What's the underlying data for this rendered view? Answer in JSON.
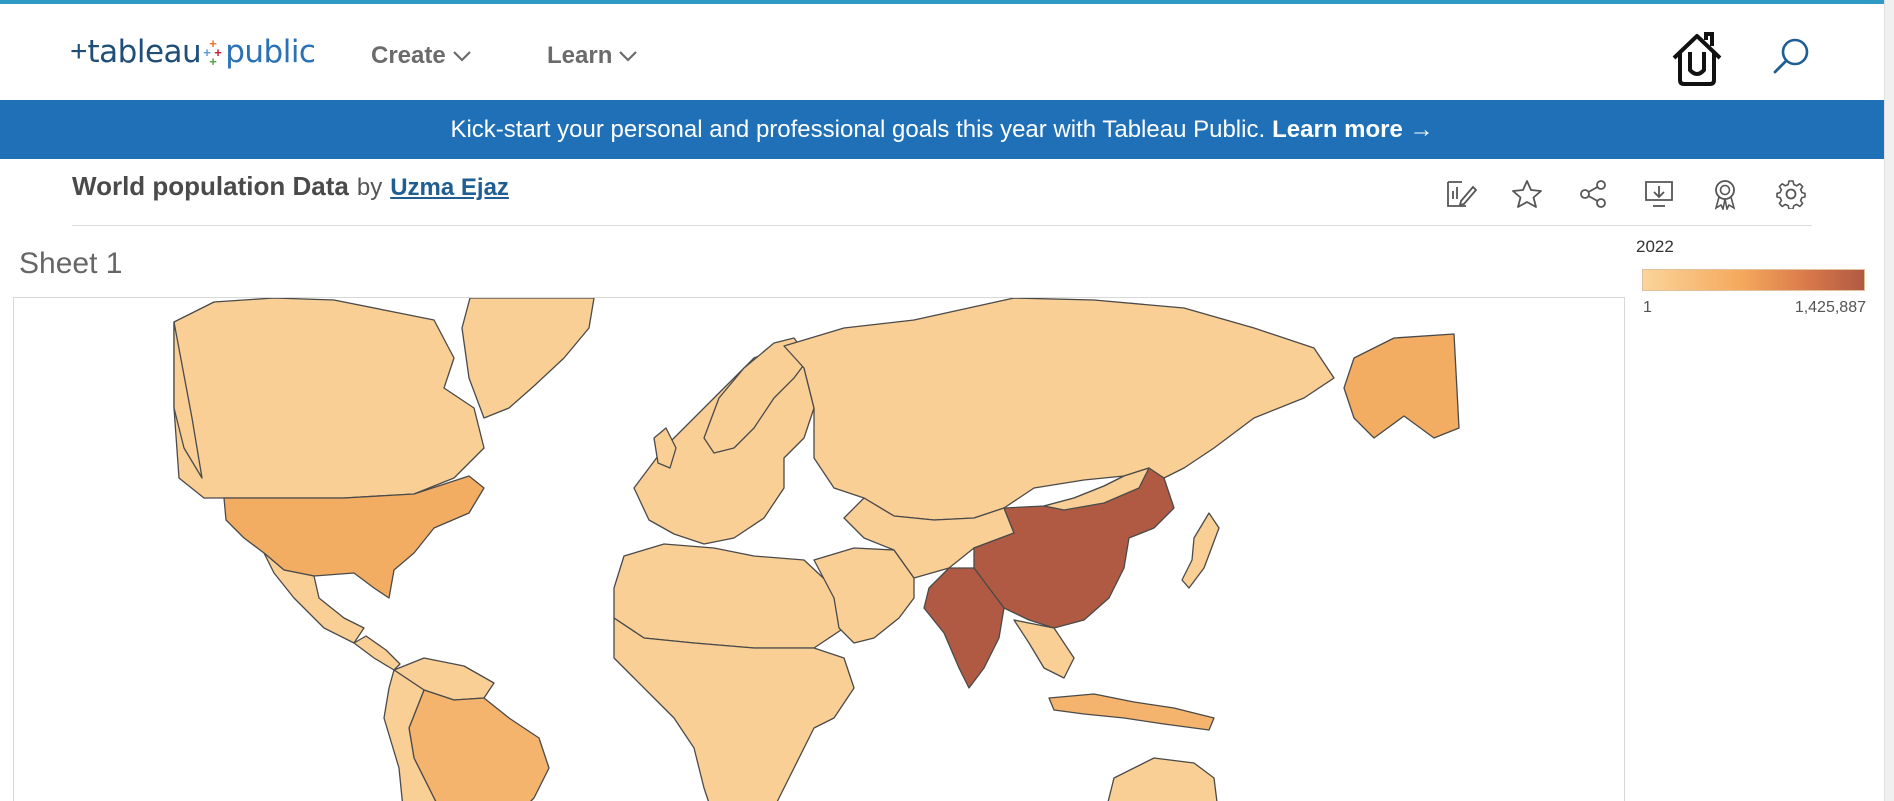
{
  "header": {
    "logo_word1": "tableau",
    "logo_word2": "public",
    "nav": [
      {
        "label": "Create"
      },
      {
        "label": "Learn"
      }
    ]
  },
  "banner": {
    "text": "Kick-start your personal and professional goals this year with Tableau Public.",
    "link_label": "Learn more →"
  },
  "viz": {
    "title": "World population Data",
    "by": "by",
    "author": "Uzma Ejaz"
  },
  "toolbar": {
    "icons": [
      "edit-chart-icon",
      "star-icon",
      "share-icon",
      "download-icon",
      "badge-icon",
      "gear-icon"
    ]
  },
  "sheet": {
    "title": "Sheet 1"
  },
  "legend": {
    "title": "2022",
    "min_label": "1",
    "max_label": "1,425,887",
    "colors": [
      "#fbd49a",
      "#f4a85c",
      "#d8784a",
      "#b05a43"
    ]
  },
  "map": {
    "highest_color": "#b05a43",
    "high_color": "#f2ad63",
    "low_color": "#f8c88b"
  }
}
